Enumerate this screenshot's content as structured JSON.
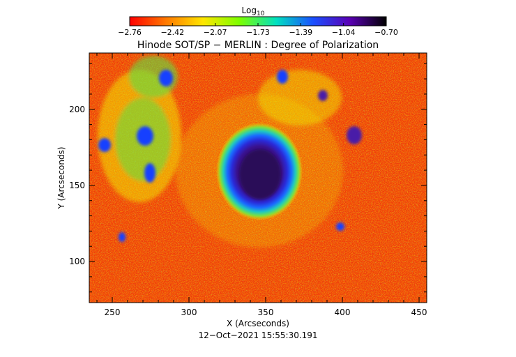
{
  "colorbar": {
    "label_main": "Log",
    "label_sub": "10",
    "ticks": [
      "−2.76",
      "−2.42",
      "−2.07",
      "−1.73",
      "−1.39",
      "−1.04",
      "−0.70"
    ],
    "stops": [
      "#ff0000",
      "#ff7a00",
      "#ffe600",
      "#7cff00",
      "#00e0c0",
      "#1a50ff",
      "#5a00b4",
      "#000000"
    ]
  },
  "title": "Hinode SOT/SP − MERLIN : Degree of Polarization",
  "x_axis": {
    "label": "X (Arcseconds)",
    "range": [
      235,
      455
    ],
    "ticks": [
      {
        "value": 250,
        "label": "250"
      },
      {
        "value": 300,
        "label": "300"
      },
      {
        "value": 350,
        "label": "350"
      },
      {
        "value": 400,
        "label": "400"
      },
      {
        "value": 450,
        "label": "450"
      }
    ]
  },
  "y_axis": {
    "label": "Y (Arcseconds)",
    "range": [
      73,
      237
    ],
    "ticks": [
      {
        "value": 100,
        "label": "100"
      },
      {
        "value": 150,
        "label": "150"
      },
      {
        "value": 200,
        "label": "200"
      }
    ]
  },
  "timestamp": "12−Oct−2021  15:55:30.191",
  "map_colors": {
    "background": "#ef3b0c",
    "orange": "#ff8a00",
    "yellow": "#f2e600",
    "green": "#5fe040",
    "cyan": "#23c8c8",
    "blue": "#1740ff",
    "violet": "#4a1aa8",
    "umbra": "#2a0858"
  }
}
